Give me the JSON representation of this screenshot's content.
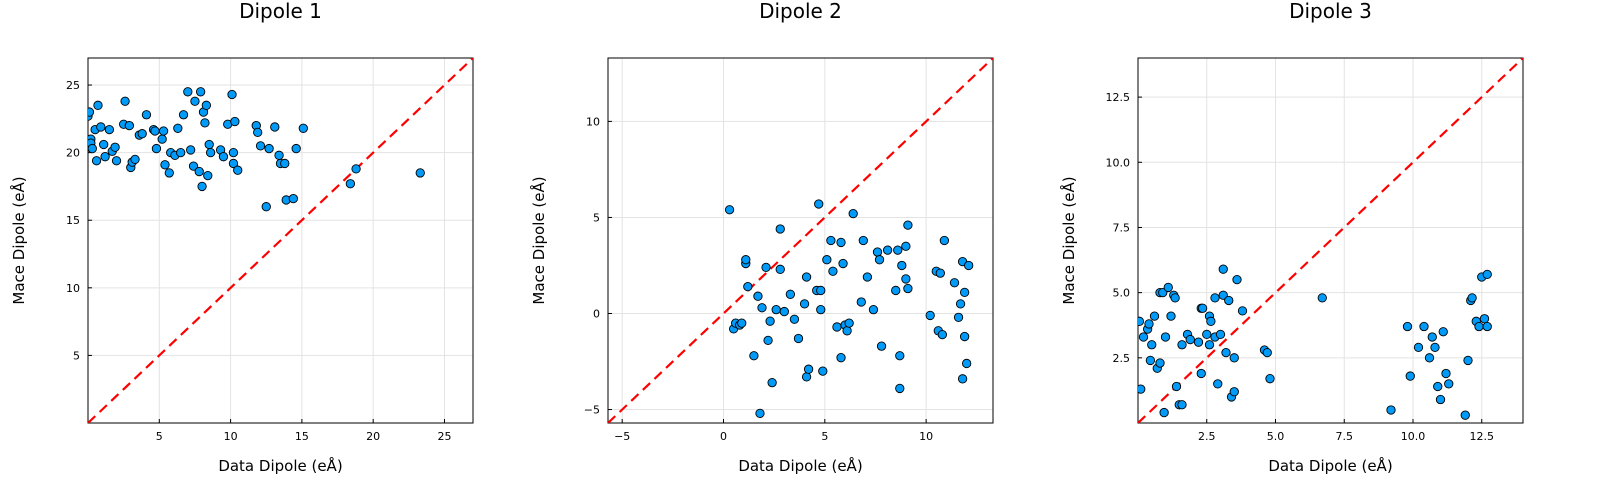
{
  "colors": {
    "points": "#009af9",
    "diagonal": "#ff0000"
  },
  "chart_data": [
    {
      "type": "scatter",
      "title": "Dipole 1",
      "xlabel": "Data Dipole (eÅ)",
      "ylabel": "Mace Dipole (eÅ)",
      "xlim": [
        0,
        27
      ],
      "ylim": [
        0,
        27
      ],
      "xticks": [
        5,
        10,
        15,
        20,
        25
      ],
      "yticks": [
        5,
        10,
        15,
        20,
        25
      ],
      "xtick_labels": [
        "5",
        "10",
        "15",
        "20",
        "25"
      ],
      "ytick_labels": [
        "5",
        "10",
        "15",
        "20",
        "25"
      ],
      "grid": true,
      "reference_line": "y = x",
      "points": [
        [
          0.0,
          22.7
        ],
        [
          0.1,
          23.0
        ],
        [
          0.2,
          21.0
        ],
        [
          0.2,
          20.7
        ],
        [
          0.3,
          20.3
        ],
        [
          0.5,
          21.7
        ],
        [
          0.6,
          19.4
        ],
        [
          0.7,
          23.5
        ],
        [
          0.9,
          21.9
        ],
        [
          1.1,
          20.6
        ],
        [
          1.2,
          19.7
        ],
        [
          1.5,
          21.7
        ],
        [
          1.7,
          20.1
        ],
        [
          1.9,
          20.4
        ],
        [
          2.0,
          19.4
        ],
        [
          2.5,
          22.1
        ],
        [
          2.6,
          23.8
        ],
        [
          2.9,
          22.0
        ],
        [
          3.0,
          18.9
        ],
        [
          3.1,
          19.3
        ],
        [
          3.3,
          19.5
        ],
        [
          3.6,
          21.3
        ],
        [
          3.8,
          21.4
        ],
        [
          4.1,
          22.8
        ],
        [
          4.6,
          21.7
        ],
        [
          4.7,
          21.6
        ],
        [
          4.8,
          20.3
        ],
        [
          5.2,
          21.0
        ],
        [
          5.3,
          21.6
        ],
        [
          5.4,
          19.1
        ],
        [
          5.7,
          18.5
        ],
        [
          5.8,
          20.0
        ],
        [
          6.1,
          19.8
        ],
        [
          6.3,
          21.8
        ],
        [
          6.5,
          20.0
        ],
        [
          6.7,
          22.8
        ],
        [
          7.0,
          24.5
        ],
        [
          7.2,
          20.2
        ],
        [
          7.4,
          19.0
        ],
        [
          7.5,
          23.8
        ],
        [
          7.8,
          18.6
        ],
        [
          7.9,
          24.5
        ],
        [
          8.0,
          17.5
        ],
        [
          8.1,
          23.0
        ],
        [
          8.2,
          22.2
        ],
        [
          8.3,
          23.5
        ],
        [
          8.4,
          18.3
        ],
        [
          8.5,
          20.6
        ],
        [
          8.6,
          20.0
        ],
        [
          9.3,
          20.2
        ],
        [
          9.5,
          19.7
        ],
        [
          9.8,
          22.1
        ],
        [
          10.1,
          24.3
        ],
        [
          10.2,
          20.0
        ],
        [
          10.2,
          19.2
        ],
        [
          10.3,
          22.3
        ],
        [
          10.5,
          18.7
        ],
        [
          11.8,
          22.0
        ],
        [
          11.9,
          21.5
        ],
        [
          12.1,
          20.5
        ],
        [
          12.5,
          16.0
        ],
        [
          12.7,
          20.3
        ],
        [
          13.1,
          21.9
        ],
        [
          13.4,
          19.8
        ],
        [
          13.5,
          19.2
        ],
        [
          13.8,
          19.2
        ],
        [
          13.9,
          16.5
        ],
        [
          14.4,
          16.6
        ],
        [
          14.6,
          20.3
        ],
        [
          15.1,
          21.8
        ],
        [
          18.4,
          17.7
        ],
        [
          18.8,
          18.8
        ],
        [
          23.3,
          18.5
        ]
      ]
    },
    {
      "type": "scatter",
      "title": "Dipole 2",
      "xlabel": "Data Dipole (eÅ)",
      "ylabel": "Mace Dipole (eÅ)",
      "xlim": [
        -5.7,
        13.3
      ],
      "ylim": [
        -5.7,
        13.3
      ],
      "xticks": [
        -5,
        0,
        5,
        10
      ],
      "yticks": [
        -5,
        0,
        5,
        10
      ],
      "xtick_labels": [
        "−5",
        "0",
        "5",
        "10"
      ],
      "ytick_labels": [
        "−5",
        "0",
        "5",
        "10"
      ],
      "grid": true,
      "reference_line": "y = x",
      "points": [
        [
          0.3,
          5.4
        ],
        [
          0.5,
          -0.8
        ],
        [
          0.6,
          -0.5
        ],
        [
          0.8,
          -0.6
        ],
        [
          0.9,
          -0.5
        ],
        [
          1.1,
          2.6
        ],
        [
          1.1,
          2.8
        ],
        [
          1.2,
          1.4
        ],
        [
          1.5,
          -2.2
        ],
        [
          1.7,
          0.9
        ],
        [
          1.8,
          -5.2
        ],
        [
          1.9,
          0.3
        ],
        [
          2.1,
          2.4
        ],
        [
          2.2,
          -1.4
        ],
        [
          2.3,
          -0.4
        ],
        [
          2.4,
          -3.6
        ],
        [
          2.6,
          0.2
        ],
        [
          2.8,
          4.4
        ],
        [
          2.8,
          2.3
        ],
        [
          3.0,
          0.1
        ],
        [
          3.3,
          1.0
        ],
        [
          3.5,
          -0.3
        ],
        [
          3.7,
          -1.3
        ],
        [
          4.0,
          0.5
        ],
        [
          4.1,
          1.9
        ],
        [
          4.1,
          -3.3
        ],
        [
          4.2,
          -2.9
        ],
        [
          4.6,
          1.2
        ],
        [
          4.7,
          5.7
        ],
        [
          4.8,
          1.2
        ],
        [
          4.8,
          0.2
        ],
        [
          4.9,
          -3.0
        ],
        [
          5.1,
          2.8
        ],
        [
          5.3,
          3.8
        ],
        [
          5.4,
          2.2
        ],
        [
          5.6,
          -0.7
        ],
        [
          5.8,
          -2.3
        ],
        [
          5.8,
          3.7
        ],
        [
          5.9,
          2.6
        ],
        [
          6.0,
          -0.6
        ],
        [
          6.1,
          -0.9
        ],
        [
          6.2,
          -0.5
        ],
        [
          6.4,
          5.2
        ],
        [
          6.8,
          0.6
        ],
        [
          6.9,
          3.8
        ],
        [
          7.1,
          1.9
        ],
        [
          7.4,
          0.2
        ],
        [
          7.6,
          3.2
        ],
        [
          7.7,
          2.8
        ],
        [
          7.8,
          -1.7
        ],
        [
          8.1,
          3.3
        ],
        [
          8.5,
          1.2
        ],
        [
          8.6,
          3.3
        ],
        [
          8.7,
          -2.2
        ],
        [
          8.7,
          -3.9
        ],
        [
          8.8,
          2.5
        ],
        [
          9.0,
          1.8
        ],
        [
          9.0,
          3.5
        ],
        [
          9.1,
          4.6
        ],
        [
          9.1,
          1.3
        ],
        [
          10.2,
          -0.1
        ],
        [
          10.5,
          2.2
        ],
        [
          10.6,
          -0.9
        ],
        [
          10.7,
          2.1
        ],
        [
          10.8,
          -1.1
        ],
        [
          10.9,
          3.8
        ],
        [
          11.4,
          1.6
        ],
        [
          11.6,
          -0.2
        ],
        [
          11.7,
          0.5
        ],
        [
          11.8,
          2.7
        ],
        [
          11.8,
          -3.4
        ],
        [
          11.9,
          1.1
        ],
        [
          11.9,
          -1.2
        ],
        [
          12.0,
          -2.6
        ],
        [
          12.1,
          2.5
        ]
      ]
    },
    {
      "type": "scatter",
      "title": "Dipole 3",
      "xlabel": "Data Dipole (eÅ)",
      "ylabel": "Mace Dipole (eÅ)",
      "xlim": [
        0,
        14
      ],
      "ylim": [
        0,
        14
      ],
      "xticks": [
        2.5,
        5,
        7.5,
        10,
        12.5
      ],
      "yticks": [
        2.5,
        5,
        7.5,
        10,
        12.5
      ],
      "xtick_labels": [
        "2.5",
        "5.0",
        "7.5",
        "10.0",
        "12.5"
      ],
      "ytick_labels": [
        "2.5",
        "5.0",
        "7.5",
        "10.0",
        "12.5"
      ],
      "grid": true,
      "reference_line": "y = x",
      "points": [
        [
          0.05,
          3.9
        ],
        [
          0.1,
          1.3
        ],
        [
          0.2,
          3.3
        ],
        [
          0.35,
          3.6
        ],
        [
          0.4,
          3.8
        ],
        [
          0.45,
          2.4
        ],
        [
          0.5,
          3.0
        ],
        [
          0.6,
          4.1
        ],
        [
          0.7,
          2.1
        ],
        [
          0.8,
          2.3
        ],
        [
          0.8,
          5.0
        ],
        [
          0.9,
          5.0
        ],
        [
          0.95,
          0.4
        ],
        [
          1.0,
          3.3
        ],
        [
          1.1,
          5.2
        ],
        [
          1.2,
          4.1
        ],
        [
          1.3,
          4.9
        ],
        [
          1.35,
          4.8
        ],
        [
          1.4,
          1.4
        ],
        [
          1.5,
          0.7
        ],
        [
          1.6,
          0.7
        ],
        [
          1.6,
          3.0
        ],
        [
          1.8,
          3.4
        ],
        [
          1.9,
          3.2
        ],
        [
          2.2,
          3.1
        ],
        [
          2.3,
          1.9
        ],
        [
          2.3,
          4.4
        ],
        [
          2.35,
          4.4
        ],
        [
          2.5,
          3.4
        ],
        [
          2.6,
          3.0
        ],
        [
          2.6,
          4.1
        ],
        [
          2.65,
          3.9
        ],
        [
          2.8,
          4.8
        ],
        [
          2.8,
          3.3
        ],
        [
          2.9,
          1.5
        ],
        [
          3.0,
          3.4
        ],
        [
          3.1,
          4.9
        ],
        [
          3.1,
          5.9
        ],
        [
          3.2,
          2.7
        ],
        [
          3.3,
          4.7
        ],
        [
          3.4,
          1.0
        ],
        [
          3.5,
          1.2
        ],
        [
          3.5,
          2.5
        ],
        [
          3.6,
          5.5
        ],
        [
          3.8,
          4.3
        ],
        [
          4.6,
          2.8
        ],
        [
          4.7,
          2.7
        ],
        [
          4.8,
          1.7
        ],
        [
          6.7,
          4.8
        ],
        [
          9.2,
          0.5
        ],
        [
          9.8,
          3.7
        ],
        [
          9.9,
          1.8
        ],
        [
          10.2,
          2.9
        ],
        [
          10.4,
          3.7
        ],
        [
          10.6,
          2.5
        ],
        [
          10.7,
          3.3
        ],
        [
          10.8,
          2.9
        ],
        [
          10.9,
          1.4
        ],
        [
          11.0,
          0.9
        ],
        [
          11.1,
          3.5
        ],
        [
          11.2,
          1.9
        ],
        [
          11.3,
          1.5
        ],
        [
          11.9,
          0.3
        ],
        [
          12.0,
          2.4
        ],
        [
          12.1,
          4.7
        ],
        [
          12.15,
          4.8
        ],
        [
          12.3,
          3.9
        ],
        [
          12.4,
          3.7
        ],
        [
          12.5,
          5.6
        ],
        [
          12.6,
          4.0
        ],
        [
          12.7,
          3.7
        ],
        [
          12.7,
          5.7
        ]
      ]
    }
  ]
}
